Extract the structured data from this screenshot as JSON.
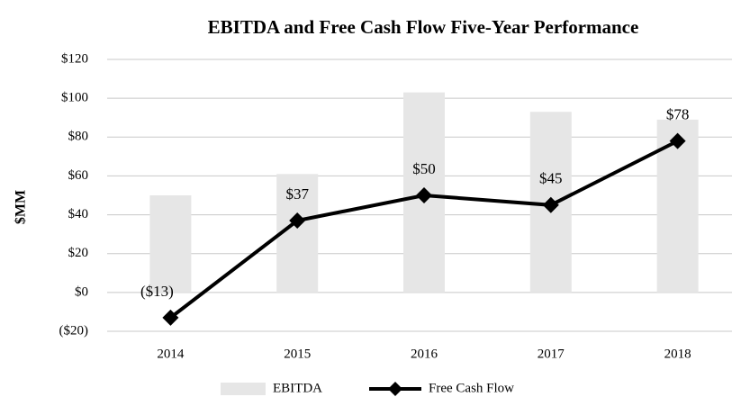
{
  "chart_data": {
    "type": "bar",
    "title": "EBITDA and Free Cash Flow Five-Year Performance",
    "y_label": "$MM",
    "categories": [
      "2014",
      "2015",
      "2016",
      "2017",
      "2018"
    ],
    "series": [
      {
        "name": "EBITDA",
        "type": "bar",
        "color": "#e6e6e6",
        "values": [
          50,
          61,
          103,
          93,
          89
        ]
      },
      {
        "name": "Free Cash Flow",
        "type": "line",
        "color": "#000000",
        "values": [
          -13,
          37,
          50,
          45,
          78
        ],
        "value_labels": [
          "($13)",
          "$37",
          "$50",
          "$45",
          "$78"
        ]
      }
    ],
    "ylim": [
      -20,
      120
    ],
    "yticks": [
      {
        "value": -20,
        "label": "($20)"
      },
      {
        "value": 0,
        "label": "$0"
      },
      {
        "value": 20,
        "label": "$20"
      },
      {
        "value": 40,
        "label": "$40"
      },
      {
        "value": 60,
        "label": "$60"
      },
      {
        "value": 80,
        "label": "$80"
      },
      {
        "value": 100,
        "label": "$100"
      },
      {
        "value": 120,
        "label": "$120"
      }
    ],
    "grid": true,
    "legend": "bottom"
  }
}
